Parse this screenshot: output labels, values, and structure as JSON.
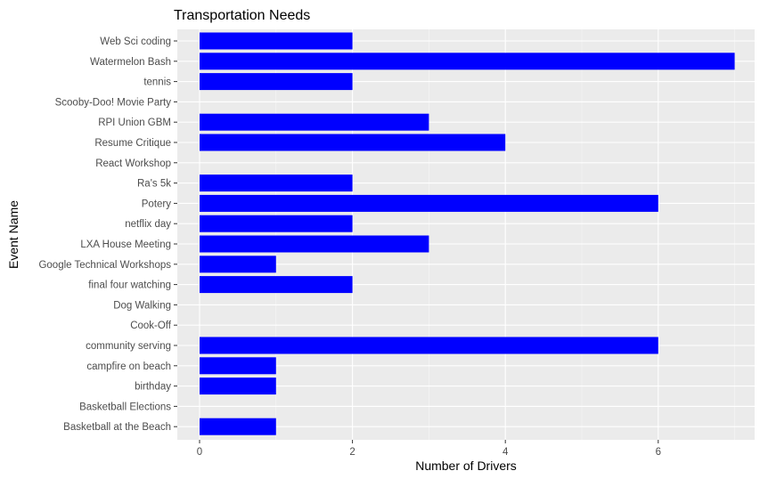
{
  "chart_data": {
    "type": "bar",
    "orientation": "horizontal",
    "title": "Transportation Needs",
    "xlabel": "Number of Drivers",
    "ylabel": "Event Name",
    "xlim": [
      0,
      7
    ],
    "xticks": [
      0,
      2,
      4,
      6
    ],
    "grid": true,
    "legend": "none",
    "bar_color": "#0000ff",
    "panel_color": "#ebebeb",
    "categories": [
      "Web Sci coding",
      "Watermelon Bash",
      "tennis",
      "Scooby-Doo! Movie Party",
      "RPI Union GBM",
      "Resume Critique",
      "React Workshop",
      "Ra's 5k",
      "Potery",
      "netflix day",
      "LXA House Meeting",
      "Google Technical Workshops",
      "final four watching",
      "Dog Walking",
      "Cook-Off",
      "community serving",
      "campfire on beach",
      "birthday",
      "Basketball Elections",
      "Basketball at the Beach"
    ],
    "values": [
      2,
      7,
      2,
      0,
      3,
      4,
      0,
      2,
      6,
      2,
      3,
      1,
      2,
      0,
      0,
      6,
      1,
      1,
      0,
      1
    ]
  }
}
